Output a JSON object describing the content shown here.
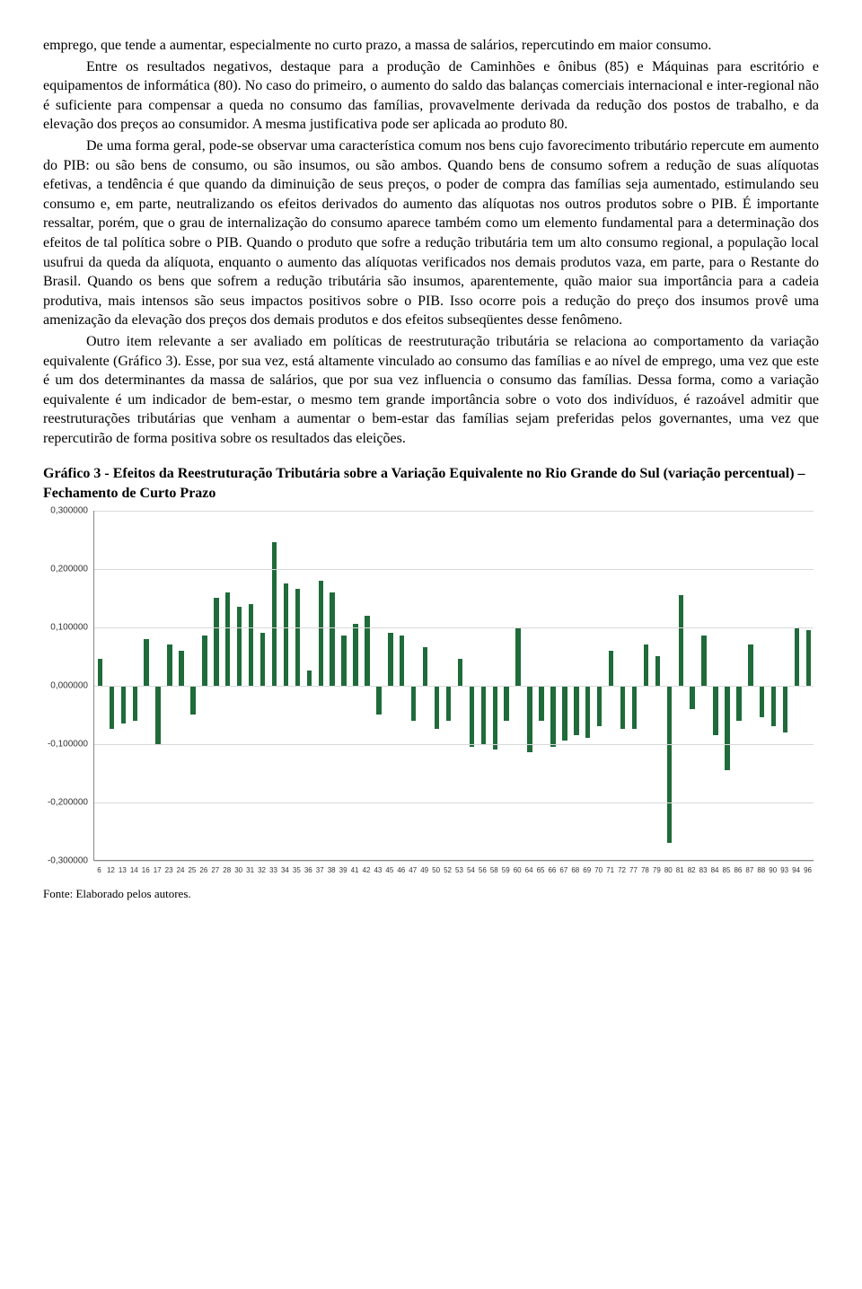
{
  "paragraphs": {
    "p1": "emprego, que tende a aumentar, especialmente no curto prazo, a massa de salários, repercutindo em maior consumo.",
    "p2": "Entre os resultados negativos, destaque para a produção de Caminhões e ônibus (85) e Máquinas para escritório e equipamentos de informática (80). No caso do primeiro, o aumento do saldo das balanças comerciais internacional e inter-regional não é suficiente para compensar a queda no consumo das famílias, provavelmente derivada da redução dos postos de trabalho, e da elevação dos preços ao consumidor. A mesma justificativa pode ser aplicada ao produto 80.",
    "p3": "De uma forma geral, pode-se observar uma característica comum nos bens cujo favorecimento tributário repercute em aumento do PIB: ou são bens de consumo, ou são insumos, ou são ambos. Quando bens de consumo sofrem a redução de suas alíquotas efetivas, a tendência é que quando da diminuição de seus preços, o poder de compra das famílias seja aumentado, estimulando seu consumo e, em parte, neutralizando os efeitos derivados do aumento das alíquotas nos outros produtos sobre o PIB. É importante ressaltar, porém, que o grau de internalização do consumo aparece também como um elemento fundamental para a determinação dos efeitos de tal política sobre o PIB. Quando o produto que sofre a redução tributária tem um alto consumo regional, a população local usufrui da queda da alíquota, enquanto o aumento das alíquotas verificados nos demais produtos vaza, em parte, para o Restante do Brasil. Quando os bens que sofrem a redução tributária são insumos, aparentemente, quão maior sua importância para a cadeia produtiva, mais intensos são seus impactos positivos sobre o PIB. Isso ocorre pois a redução do preço dos insumos provê uma amenização da elevação dos preços dos demais produtos e dos efeitos subseqüentes desse fenômeno.",
    "p4": "Outro item relevante a ser avaliado em políticas de reestruturação tributária se relaciona ao comportamento da variação equivalente (Gráfico 3). Esse, por sua vez, está altamente vinculado ao consumo das famílias e ao nível de emprego, uma vez que este é um dos determinantes da massa de salários, que por sua vez influencia o consumo das famílias. Dessa forma, como a variação equivalente é um indicador de bem-estar, o mesmo tem grande importância sobre o voto dos indivíduos, é razoável admitir que reestruturações tributárias que venham a aumentar o bem-estar das famílias sejam preferidas pelos governantes, uma vez que repercutirão de forma positiva sobre os resultados das eleições."
  },
  "chart": {
    "title": "Gráfico 3 - Efeitos da Reestruturação Tributária sobre a Variação Equivalente no Rio Grande do Sul (variação percentual) – Fechamento de Curto Prazo",
    "type": "bar",
    "ylim": [
      -0.3,
      0.3
    ],
    "yticks": [
      -0.3,
      -0.2,
      -0.1,
      0.0,
      0.1,
      0.2,
      0.3
    ],
    "ytick_labels": [
      "-0,300000",
      "-0,200000",
      "-0,100000",
      "0,000000",
      "0,100000",
      "0,200000",
      "0,300000"
    ],
    "bar_color": "#1f6b3a",
    "grid_color": "#d9d9d9",
    "background_color": "#ffffff",
    "axis_color": "#888888",
    "label_fontsize": 10,
    "xlabel_fontsize": 8,
    "categories": [
      "6",
      "12",
      "13",
      "14",
      "16",
      "17",
      "23",
      "24",
      "25",
      "26",
      "27",
      "28",
      "30",
      "31",
      "32",
      "33",
      "34",
      "35",
      "36",
      "37",
      "38",
      "39",
      "41",
      "42",
      "43",
      "45",
      "46",
      "47",
      "49",
      "50",
      "52",
      "53",
      "54",
      "56",
      "58",
      "59",
      "60",
      "64",
      "65",
      "66",
      "67",
      "68",
      "69",
      "70",
      "71",
      "72",
      "77",
      "78",
      "79",
      "80",
      "81",
      "82",
      "83",
      "84",
      "85",
      "86",
      "87",
      "88",
      "90",
      "93",
      "94",
      "96"
    ],
    "values": [
      0.045,
      -0.075,
      -0.065,
      -0.06,
      0.08,
      -0.1,
      0.07,
      0.06,
      -0.05,
      0.085,
      0.15,
      0.16,
      0.135,
      0.14,
      0.09,
      0.245,
      0.175,
      0.165,
      0.025,
      0.18,
      0.16,
      0.085,
      0.105,
      0.12,
      -0.05,
      0.09,
      0.085,
      -0.06,
      0.065,
      -0.075,
      -0.06,
      0.045,
      -0.105,
      -0.1,
      -0.11,
      -0.06,
      0.1,
      -0.115,
      -0.06,
      -0.105,
      -0.095,
      -0.085,
      -0.09,
      -0.07,
      0.06,
      -0.075,
      -0.075,
      0.07,
      0.05,
      -0.27,
      0.155,
      -0.04,
      0.085,
      -0.085,
      -0.145,
      -0.06,
      0.07,
      -0.055,
      -0.07,
      -0.08,
      0.1,
      0.095
    ],
    "source": "Fonte: Elaborado pelos autores."
  }
}
